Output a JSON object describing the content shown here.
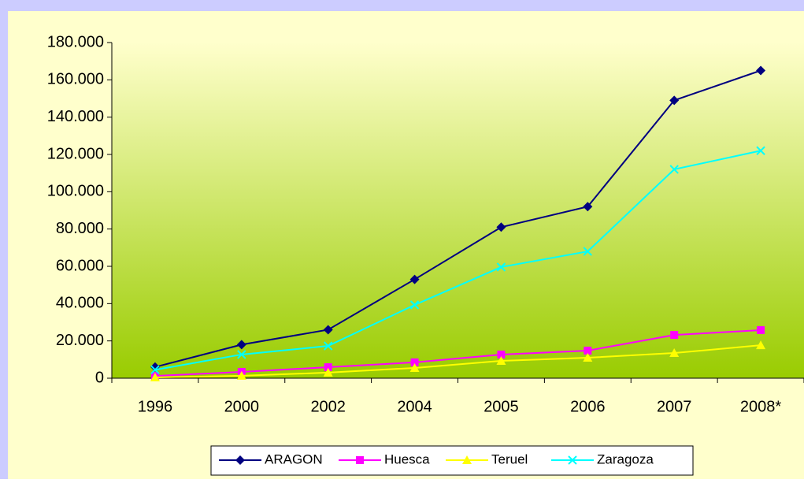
{
  "chart_data": {
    "type": "line",
    "categories": [
      "1996",
      "2000",
      "2002",
      "2004",
      "2005",
      "2006",
      "2007",
      "2008*"
    ],
    "series": [
      {
        "name": "ARAGON",
        "color": "#000080",
        "marker": "diamond",
        "values": [
          6000,
          18000,
          26000,
          53000,
          81000,
          92000,
          149000,
          165000
        ]
      },
      {
        "name": "Huesca",
        "color": "#ff00ff",
        "marker": "square",
        "values": [
          1200,
          3400,
          5900,
          8500,
          12700,
          14800,
          23200,
          25800
        ]
      },
      {
        "name": "Teruel",
        "color": "#ffff00",
        "marker": "triangle",
        "values": [
          400,
          1300,
          3000,
          5500,
          9300,
          11000,
          13500,
          17700
        ]
      },
      {
        "name": "Zaragoza",
        "color": "#00ffff",
        "marker": "x",
        "values": [
          4500,
          12700,
          17300,
          39300,
          59600,
          68000,
          112000,
          122000
        ]
      }
    ],
    "ylim": [
      0,
      180000
    ],
    "yticks": [
      0,
      {
        "value": 20000,
        "label": "20.000"
      },
      {
        "value": 40000,
        "label": "40.000"
      },
      {
        "value": 60000,
        "label": "60.000"
      },
      {
        "value": 80000,
        "label": "80.000"
      },
      {
        "value": 100000,
        "label": "100.000"
      },
      {
        "value": 120000,
        "label": "120.000"
      },
      {
        "value": 140000,
        "label": "140.000"
      },
      {
        "value": 160000,
        "label": "160.000"
      },
      {
        "value": 180000,
        "label": "180.000"
      }
    ],
    "legend": "bottom"
  }
}
